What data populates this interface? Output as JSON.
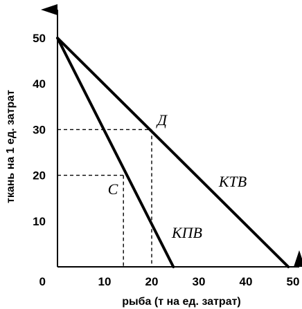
{
  "chart_data": {
    "type": "line",
    "xlabel": "рыба (т на ед. затрат)",
    "ylabel": "ткань на 1 ед. затрат",
    "xlim": [
      0,
      52
    ],
    "ylim": [
      0,
      54
    ],
    "x_ticks": [
      "10",
      "20",
      "30",
      "40",
      "50"
    ],
    "y_ticks": [
      "10",
      "20",
      "30",
      "40",
      "50"
    ],
    "origin_label": "0",
    "series": [
      {
        "name": "КТВ",
        "points": [
          [
            0,
            50
          ],
          [
            49,
            0
          ]
        ]
      },
      {
        "name": "КПВ",
        "points": [
          [
            0,
            50
          ],
          [
            24.6,
            0
          ]
        ]
      }
    ],
    "points": [
      {
        "label": "Д",
        "x": 20,
        "y": 30
      },
      {
        "label": "С",
        "x": 14,
        "y": 20
      }
    ]
  }
}
